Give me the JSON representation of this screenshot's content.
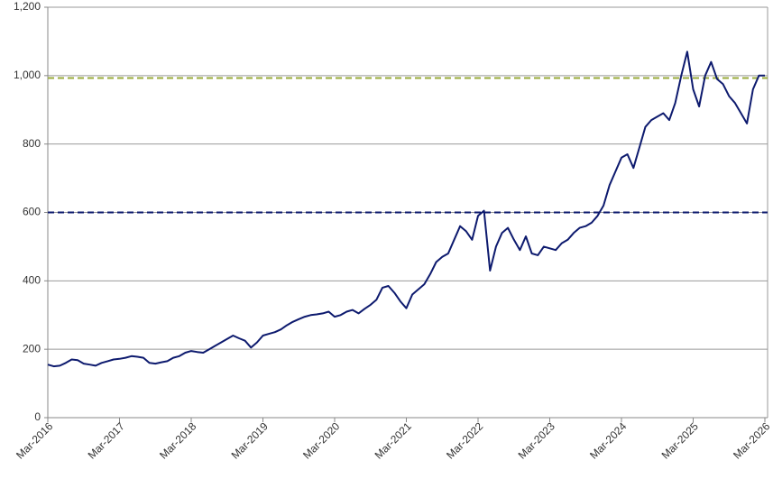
{
  "chart_data": {
    "type": "line",
    "x": [
      "Mar-2016",
      "Apr-2016",
      "May-2016",
      "Jun-2016",
      "Jul-2016",
      "Aug-2016",
      "Sep-2016",
      "Oct-2016",
      "Nov-2016",
      "Dec-2016",
      "Jan-2017",
      "Feb-2017",
      "Mar-2017",
      "Apr-2017",
      "May-2017",
      "Jun-2017",
      "Jul-2017",
      "Aug-2017",
      "Sep-2017",
      "Oct-2017",
      "Nov-2017",
      "Dec-2017",
      "Jan-2018",
      "Feb-2018",
      "Mar-2018",
      "Apr-2018",
      "May-2018",
      "Jun-2018",
      "Jul-2018",
      "Aug-2018",
      "Sep-2018",
      "Oct-2018",
      "Nov-2018",
      "Dec-2018",
      "Jan-2019",
      "Feb-2019",
      "Mar-2019",
      "Apr-2019",
      "May-2019",
      "Jun-2019",
      "Jul-2019",
      "Aug-2019",
      "Sep-2019",
      "Oct-2019",
      "Nov-2019",
      "Dec-2019",
      "Jan-2020",
      "Feb-2020",
      "Mar-2020",
      "Apr-2020",
      "May-2020",
      "Jun-2020",
      "Jul-2020",
      "Aug-2020",
      "Sep-2020",
      "Oct-2020",
      "Nov-2020",
      "Dec-2020",
      "Jan-2021",
      "Feb-2021",
      "Mar-2021",
      "Apr-2021",
      "May-2021",
      "Jun-2021",
      "Jul-2021",
      "Aug-2021",
      "Sep-2021",
      "Oct-2021",
      "Nov-2021",
      "Dec-2021",
      "Jan-2022",
      "Feb-2022",
      "Mar-2022",
      "Apr-2022",
      "May-2022",
      "Jun-2022",
      "Jul-2022",
      "Aug-2022",
      "Sep-2022",
      "Oct-2022",
      "Nov-2022",
      "Dec-2022",
      "Jan-2023",
      "Feb-2023",
      "Mar-2023",
      "Apr-2023",
      "May-2023",
      "Jun-2023",
      "Jul-2023",
      "Aug-2023",
      "Sep-2023",
      "Oct-2023",
      "Nov-2023",
      "Dec-2023",
      "Jan-2024",
      "Feb-2024",
      "Mar-2024",
      "Apr-2024",
      "May-2024",
      "Jun-2024",
      "Jul-2024",
      "Aug-2024",
      "Sep-2024",
      "Oct-2024",
      "Nov-2024",
      "Dec-2024",
      "Jan-2025",
      "Feb-2025",
      "Mar-2025",
      "Apr-2025",
      "May-2025",
      "Jun-2025",
      "Jul-2025",
      "Aug-2025",
      "Sep-2025",
      "Oct-2025",
      "Nov-2025",
      "Dec-2025",
      "Jan-2026",
      "Feb-2026",
      "Mar-2026"
    ],
    "series": [
      {
        "color": "#0d1a6e",
        "values": [
          155,
          150,
          152,
          160,
          170,
          168,
          158,
          155,
          152,
          160,
          165,
          170,
          172,
          175,
          180,
          178,
          175,
          160,
          158,
          162,
          165,
          175,
          180,
          190,
          195,
          192,
          190,
          200,
          210,
          220,
          230,
          240,
          232,
          225,
          205,
          220,
          240,
          245,
          250,
          258,
          270,
          280,
          288,
          295,
          300,
          302,
          305,
          310,
          295,
          300,
          310,
          315,
          305,
          318,
          330,
          345,
          380,
          385,
          365,
          340,
          320,
          360,
          375,
          390,
          420,
          455,
          470,
          480,
          520,
          560,
          545,
          520,
          590,
          605,
          430,
          500,
          540,
          555,
          520,
          490,
          530,
          480,
          475,
          500,
          495,
          490,
          510,
          520,
          540,
          555,
          560,
          570,
          590,
          620,
          680,
          720,
          760,
          770,
          730,
          790,
          850,
          870,
          880,
          890,
          870,
          920,
          1000,
          1070,
          960,
          910,
          1000,
          1040,
          990,
          975,
          940,
          920,
          890,
          860,
          960,
          1000,
          1000
        ]
      }
    ],
    "reference_lines": [
      {
        "value": 993,
        "color": "#9aab3c"
      },
      {
        "value": 600,
        "color": "#0d1a6e"
      }
    ],
    "xticks": [
      "Mar-2016",
      "Mar-2017",
      "Mar-2018",
      "Mar-2019",
      "Mar-2020",
      "Mar-2021",
      "Mar-2022",
      "Mar-2023",
      "Mar-2024",
      "Mar-2025",
      "Mar-2026"
    ],
    "ylim": [
      0,
      1200
    ],
    "yticks": [
      0,
      200,
      400,
      600,
      800,
      {
        "value": 1000,
        "label": "1,000"
      },
      {
        "value": 1200,
        "label": "1,200"
      }
    ],
    "grid": true
  }
}
